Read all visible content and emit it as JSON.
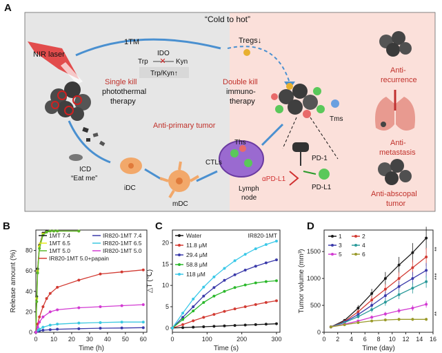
{
  "panel_a": {
    "letter": "A",
    "title": "“Cold to hot”",
    "nir_laser": "NIR laser",
    "one_tm": "1TM",
    "ido": "IDO",
    "trp": "Trp",
    "kyn": "Kyn",
    "trp_kyn": "Trp/Kyn↑",
    "tregs": "Tregs↓",
    "single_kill_title": "Single kill",
    "single_kill_sub1": "photothermal",
    "single_kill_sub2": "therapy",
    "double_kill_title": "Double kill",
    "double_kill_sub1": "immuno-",
    "double_kill_sub2": "therapy",
    "anti_primary": "Anti-primary tumor",
    "icd": "ICD",
    "eat_me": "“Eat me”",
    "idc": "iDC",
    "mdc": "mDC",
    "ctls": "CTLs",
    "ths": "Ths",
    "lymph1": "Lymph",
    "lymph2": "node",
    "tms": "Tms",
    "pd1": "PD-1",
    "apdl1": "αPD-L1",
    "pdl1": "PD-L1",
    "anti_recurrence1": "Anti-",
    "anti_recurrence2": "recurrence",
    "anti_metastasis1": "Anti-",
    "anti_metastasis2": "metastasis",
    "anti_abscopal1": "Anti-abscopal",
    "anti_abscopal2": "tumor"
  },
  "chart_data": [
    {
      "panel": "B",
      "type": "line",
      "xlabel": "Time (h)",
      "ylabel": "Release amount (%)",
      "xlim": [
        0,
        62
      ],
      "ylim": [
        0,
        100
      ],
      "xticks": [
        0,
        10,
        20,
        30,
        40,
        50,
        60
      ],
      "yticks": [
        0,
        20,
        40,
        60,
        80
      ],
      "series": [
        {
          "name": "1MT 7.4",
          "color": "#1a1a1a",
          "x": [
            0,
            0.5,
            1,
            2,
            4,
            6,
            8,
            10,
            12,
            24
          ],
          "y": [
            0,
            35,
            62,
            85,
            97,
            99,
            99,
            99,
            99,
            99
          ]
        },
        {
          "name": "1MT 6.5",
          "color": "#e8e81a",
          "x": [
            0,
            0.5,
            1,
            2,
            4,
            6,
            8,
            10,
            12,
            24
          ],
          "y": [
            0,
            33,
            60,
            84,
            96,
            98,
            99,
            99,
            99,
            99
          ]
        },
        {
          "name": "1MT 5.0",
          "color": "#5ab82a",
          "x": [
            0,
            0.5,
            1,
            2,
            4,
            6,
            8,
            10,
            12,
            24
          ],
          "y": [
            0,
            30,
            58,
            82,
            95,
            98,
            99,
            99,
            99,
            99
          ]
        },
        {
          "name": "IR820-1MT 5.0+papain",
          "color": "#d23a32",
          "x": [
            0,
            1,
            2,
            4,
            6,
            8,
            12,
            24,
            36,
            48,
            60
          ],
          "y": [
            0,
            8,
            15,
            25,
            33,
            38,
            44,
            51,
            57,
            59,
            61
          ]
        },
        {
          "name": "IR820-1MT 7.4",
          "color": "#3a3aaa",
          "x": [
            0,
            1,
            2,
            4,
            8,
            12,
            24,
            36,
            48,
            60
          ],
          "y": [
            0,
            1,
            1.5,
            2,
            2.5,
            3,
            3.5,
            4,
            4.2,
            4.5
          ]
        },
        {
          "name": "IR820-1MT 6.5",
          "color": "#3ac8e0",
          "x": [
            0,
            1,
            2,
            4,
            8,
            12,
            24,
            36,
            48,
            60
          ],
          "y": [
            0,
            2,
            3,
            5,
            7,
            8,
            9,
            9.5,
            10,
            10
          ]
        },
        {
          "name": "IR820-1MT 5.0",
          "color": "#d23ad2",
          "x": [
            0,
            1,
            2,
            4,
            8,
            12,
            24,
            36,
            48,
            60
          ],
          "y": [
            0,
            5,
            10,
            15,
            20,
            22,
            24,
            25,
            26,
            27
          ]
        }
      ]
    },
    {
      "panel": "C",
      "type": "line",
      "title": "IR820-1MT",
      "xlabel": "Time (s)",
      "ylabel": "△T (℃)",
      "xlim": [
        0,
        310
      ],
      "ylim": [
        -1,
        23
      ],
      "xticks": [
        0,
        100,
        200,
        300
      ],
      "yticks": [
        0,
        5,
        10,
        15,
        20
      ],
      "x": [
        0,
        30,
        60,
        90,
        120,
        150,
        180,
        210,
        240,
        270,
        300
      ],
      "series": [
        {
          "name": "Water",
          "color": "#1a1a1a",
          "y": [
            0,
            0.1,
            0.2,
            0.3,
            0.4,
            0.5,
            0.6,
            0.7,
            0.8,
            0.9,
            1.0
          ]
        },
        {
          "name": "11.8 μM",
          "color": "#d23a32",
          "y": [
            0,
            0.8,
            1.7,
            2.5,
            3.2,
            3.9,
            4.5,
            5.0,
            5.5,
            6.0,
            6.4
          ]
        },
        {
          "name": "29.4 μM",
          "color": "#3a3aaa",
          "y": [
            0,
            2.5,
            5,
            7.5,
            9.5,
            11.2,
            12.5,
            13.6,
            14.5,
            15.3,
            16
          ]
        },
        {
          "name": "58.8 μM",
          "color": "#2ab82a",
          "y": [
            0,
            2.0,
            4.0,
            6.0,
            7.5,
            8.6,
            9.5,
            10.1,
            10.6,
            10.9,
            11.1
          ]
        },
        {
          "name": "118 μM",
          "color": "#3ac8e8",
          "y": [
            0,
            3.5,
            6.8,
            9.6,
            12,
            14,
            15.8,
            17.3,
            18.6,
            19.6,
            20.4
          ]
        }
      ]
    },
    {
      "panel": "D",
      "type": "line",
      "xlabel": "Time (day)",
      "ylabel": "Tumor volume (mm³)",
      "xlim": [
        0,
        16
      ],
      "ylim": [
        0,
        1900
      ],
      "xticks": [
        0,
        2,
        4,
        6,
        8,
        10,
        12,
        14,
        16
      ],
      "yticks": [
        0,
        500,
        1000,
        1500
      ],
      "x": [
        1,
        3,
        5,
        7,
        9,
        11,
        13,
        15
      ],
      "series": [
        {
          "name": "1",
          "color": "#1a1a1a",
          "y": [
            100,
            220,
            450,
            720,
            1000,
            1250,
            1480,
            1750
          ]
        },
        {
          "name": "2",
          "color": "#d23a32",
          "y": [
            100,
            200,
            380,
            600,
            800,
            1000,
            1200,
            1400
          ]
        },
        {
          "name": "3",
          "color": "#3a3aaa",
          "y": [
            100,
            190,
            330,
            500,
            680,
            850,
            1000,
            1150
          ]
        },
        {
          "name": "4",
          "color": "#2a9a9a",
          "y": [
            100,
            180,
            290,
            420,
            560,
            700,
            820,
            940
          ]
        },
        {
          "name": "5",
          "color": "#d23ad2",
          "y": [
            100,
            150,
            210,
            280,
            340,
            400,
            450,
            520
          ]
        },
        {
          "name": "6",
          "color": "#9a9a2a",
          "y": [
            100,
            140,
            180,
            210,
            230,
            240,
            240,
            240
          ]
        }
      ],
      "significance": [
        "**",
        "***",
        "**"
      ]
    }
  ]
}
